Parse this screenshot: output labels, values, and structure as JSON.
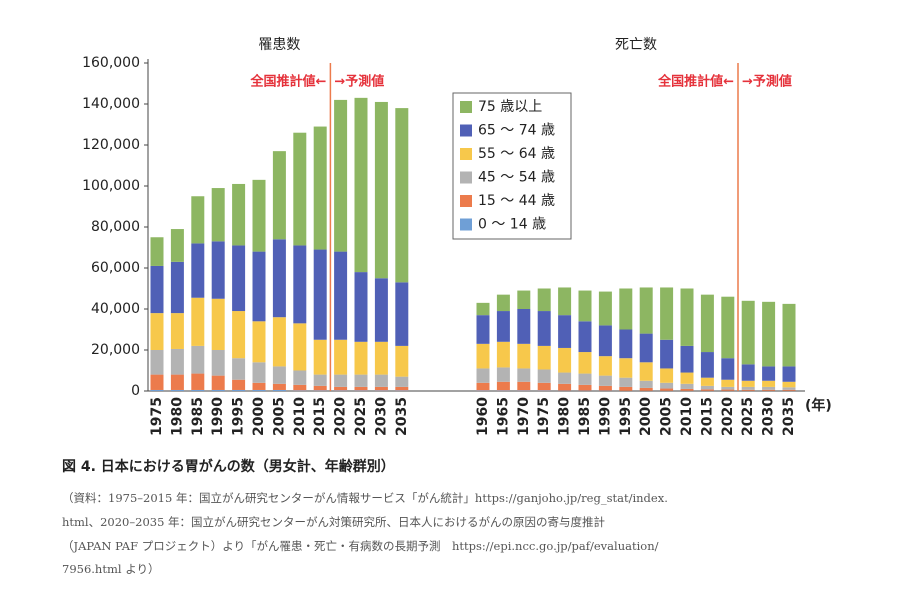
{
  "chart_data": {
    "type": "bar",
    "stacked": true,
    "ylim": [
      0,
      160000
    ],
    "yticks": [
      0,
      {
        "value": 20000,
        "label": "20,000"
      },
      {
        "value": 40000,
        "label": "40,000"
      },
      {
        "value": 60000,
        "label": "60,000"
      },
      {
        "value": 80000,
        "label": "80,000"
      },
      {
        "value": 100000,
        "label": "100,000"
      },
      {
        "value": 120000,
        "label": "120,000"
      },
      {
        "value": 140000,
        "label": "140,000"
      },
      {
        "value": 160000,
        "label": "160,000"
      }
    ],
    "x_unit": "(年)",
    "series": [
      {
        "name": "0 ～ 14 歳",
        "color": "#6f9fd6"
      },
      {
        "name": "15 ～ 44 歳",
        "color": "#ec7b4c"
      },
      {
        "name": "45 ～ 54 歳",
        "color": "#b3b3b3"
      },
      {
        "name": "55 ～ 64 歳",
        "color": "#f7c84b"
      },
      {
        "name": "65 ～ 74 歳",
        "color": "#5060b6"
      },
      {
        "name": "75 歳以上",
        "color": "#8db662"
      }
    ],
    "panels": [
      {
        "title": "罹患数",
        "annotation_left": "全国推計値←",
        "annotation_right": "→予測値",
        "projection_from": "2020",
        "categories": [
          "1975",
          "1980",
          "1985",
          "1990",
          "1995",
          "2000",
          "2005",
          "2010",
          "2015",
          "2020",
          "2025",
          "2030",
          "2035"
        ],
        "values": [
          [
            500,
            500,
            500,
            500,
            500,
            500,
            500,
            300,
            300,
            300,
            300,
            300,
            300
          ],
          [
            7500,
            7500,
            8000,
            7000,
            5000,
            3500,
            3000,
            2700,
            2200,
            1700,
            1700,
            1700,
            1700
          ],
          [
            12000,
            12500,
            13500,
            12500,
            10500,
            10000,
            8500,
            7000,
            5500,
            6000,
            6000,
            6000,
            5000
          ],
          [
            18000,
            17500,
            23500,
            25000,
            23000,
            20000,
            24000,
            23000,
            17000,
            17000,
            16000,
            16000,
            15000
          ],
          [
            23000,
            25000,
            26500,
            28000,
            32000,
            34000,
            38000,
            38000,
            44000,
            43000,
            34000,
            31000,
            31000
          ],
          [
            14000,
            16000,
            23000,
            26000,
            30000,
            35000,
            43000,
            55000,
            60000,
            74000,
            85000,
            86000,
            85000
          ]
        ]
      },
      {
        "title": "死亡数",
        "annotation_left": "全国推計値←",
        "annotation_right": "→予測値",
        "projection_from": "2025",
        "categories": [
          "1960",
          "1965",
          "1970",
          "1975",
          "1980",
          "1985",
          "1990",
          "1995",
          "2000",
          "2005",
          "2010",
          "2015",
          "2020",
          "2025",
          "2030",
          "2035"
        ],
        "values": [
          [
            300,
            300,
            300,
            300,
            200,
            200,
            200,
            100,
            100,
            100,
            100,
            100,
            100,
            100,
            100,
            100
          ],
          [
            3700,
            4200,
            4200,
            3700,
            3300,
            2800,
            2300,
            1900,
            1400,
            1100,
            900,
            700,
            600,
            500,
            500,
            500
          ],
          [
            7000,
            7000,
            6500,
            6500,
            5500,
            5500,
            5000,
            4500,
            3500,
            2800,
            2500,
            1700,
            1300,
            1400,
            1400,
            1200
          ],
          [
            12000,
            12500,
            12000,
            11500,
            12000,
            10500,
            9500,
            9500,
            9000,
            7000,
            5500,
            4000,
            3500,
            3000,
            3000,
            2700
          ],
          [
            14000,
            15000,
            17000,
            17000,
            16000,
            15000,
            15000,
            14000,
            14000,
            14000,
            13000,
            12500,
            10500,
            8000,
            7000,
            7500
          ],
          [
            6000,
            8000,
            9000,
            11000,
            13500,
            15000,
            16500,
            20000,
            22500,
            25500,
            28000,
            28000,
            30000,
            31000,
            31500,
            30500
          ]
        ]
      }
    ]
  },
  "caption": "図 4.  日本における胃がんの数（男女計、年齢群別）",
  "source": [
    "（資料：1975–2015 年：国立がん研究センターがん情報サービス「がん統計」https://ganjoho.jp/reg_stat/index.",
    "html、2020–2035 年：国立がん研究センターがん対策研究所、日本人におけるがんの原因の寄与度推計",
    "（JAPAN PAF プロジェクト）より「がん罹患・死亡・有病数の長期予測　https://epi.ncc.go.jp/paf/evaluation/",
    "7956.html より）"
  ]
}
